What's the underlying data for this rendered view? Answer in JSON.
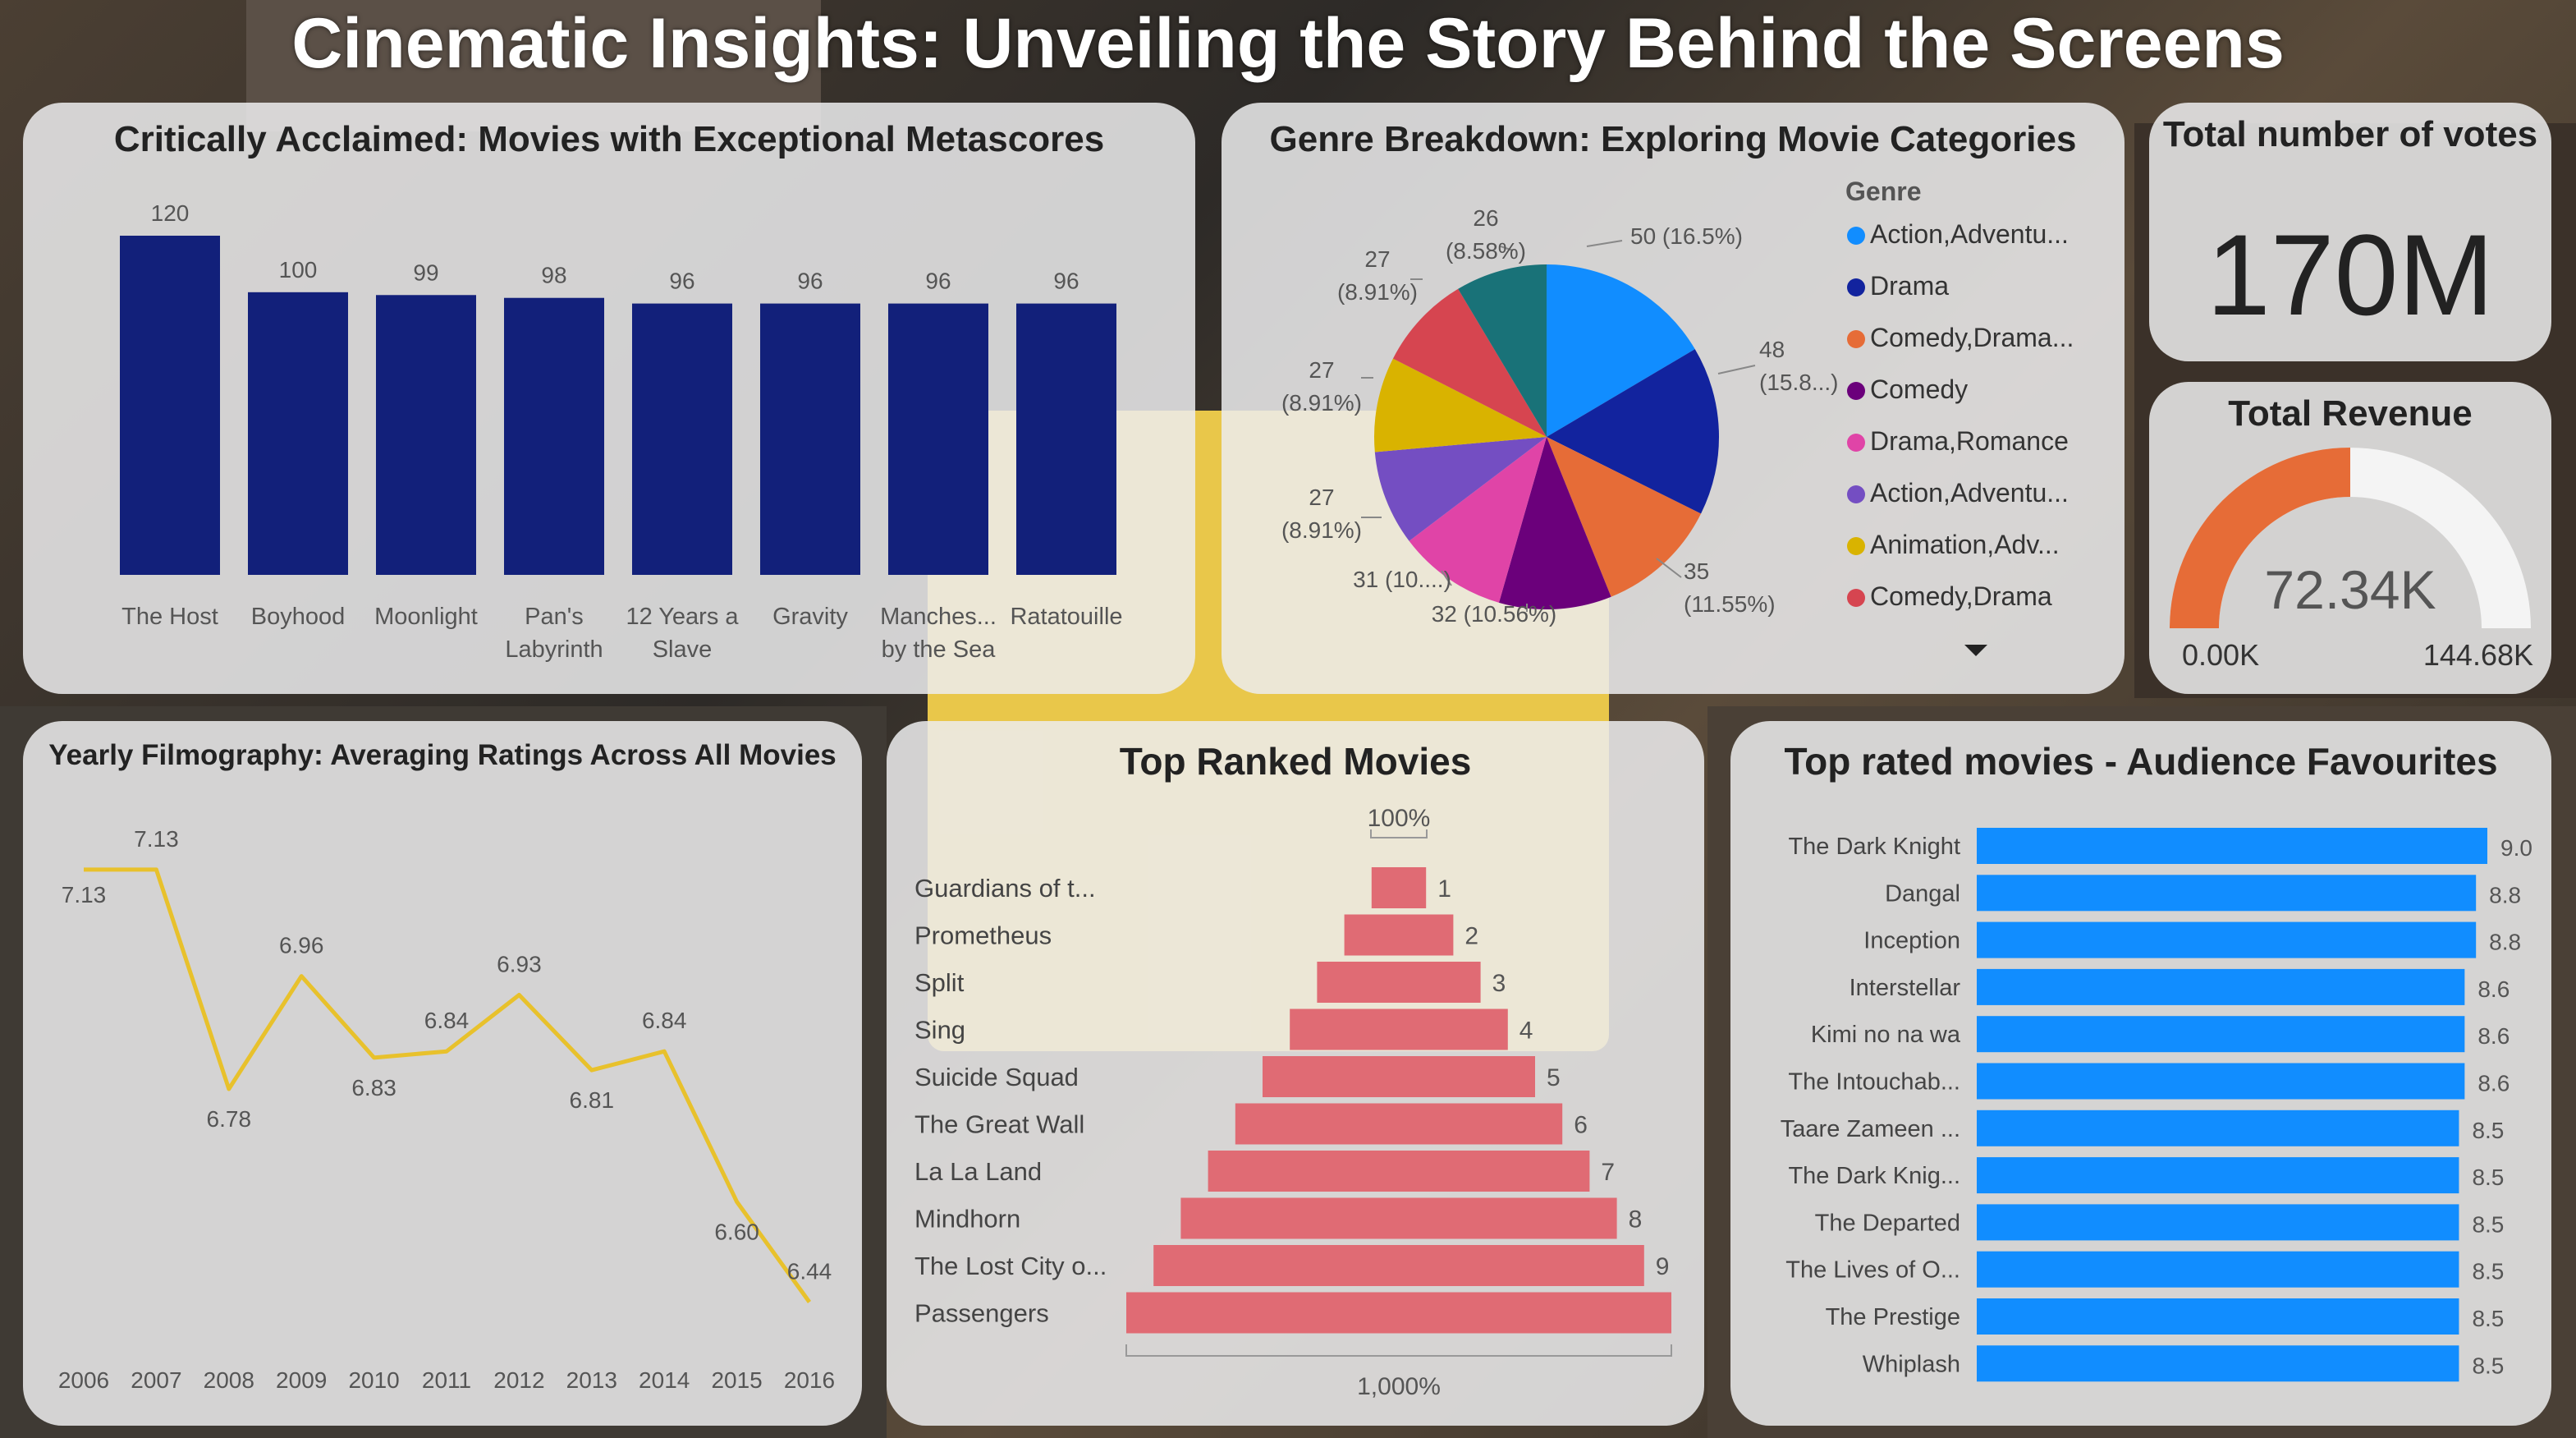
{
  "title": "Cinematic Insights: Unveiling the Story Behind the Screens",
  "metascore": {
    "title": "Critically Acclaimed: Movies with Exceptional Metascores",
    "chart_data": {
      "type": "bar",
      "categories": [
        "The Host",
        "Boyhood",
        "Moonlight",
        "Pan's Labyrinth",
        "12 Years a Slave",
        "Gravity",
        "Manches... by the Sea",
        "Ratatouille"
      ],
      "category_lines": [
        [
          "The Host"
        ],
        [
          "Boyhood"
        ],
        [
          "Moonlight"
        ],
        [
          "Pan's",
          "Labyrinth"
        ],
        [
          "12 Years a",
          "Slave"
        ],
        [
          "Gravity"
        ],
        [
          "Manches...",
          "by the Sea"
        ],
        [
          "Ratatouille"
        ]
      ],
      "values": [
        120,
        100,
        99,
        98,
        96,
        96,
        96,
        96
      ],
      "color": "#12207a",
      "ylim": [
        0,
        120
      ]
    }
  },
  "genre": {
    "title": "Genre Breakdown: Exploring Movie Categories",
    "legend_title": "Genre",
    "chart_data": {
      "type": "pie",
      "slices": [
        {
          "name": "Action,Adventu...",
          "value": 50,
          "label": [
            "50 (16.5%)"
          ],
          "color": "#118dff"
        },
        {
          "name": "Drama",
          "value": 48,
          "label": [
            "48",
            "(15.8...)"
          ],
          "color": "#12239e"
        },
        {
          "name": "Comedy,Drama...",
          "value": 35,
          "label": [
            "35",
            "(11.55%)"
          ],
          "color": "#e66c37"
        },
        {
          "name": "Comedy",
          "value": 32,
          "label": [
            "32 (10.56%)"
          ],
          "color": "#6b007b"
        },
        {
          "name": "Drama,Romance",
          "value": 31,
          "label": [
            "31 (10....)"
          ],
          "color": "#e044a7"
        },
        {
          "name": "Action,Adventu...",
          "value": 27,
          "label": [
            "27",
            "(8.91%)"
          ],
          "color": "#744ec2"
        },
        {
          "name": "Animation,Adv...",
          "value": 27,
          "label": [
            "27",
            "(8.91%)"
          ],
          "color": "#d9b300"
        },
        {
          "name": "Comedy,Drama",
          "value": 27,
          "label": [
            "27",
            "(8.91%)"
          ],
          "color": "#d64550"
        },
        {
          "name": "",
          "value": 26,
          "label": [
            "26",
            "(8.58%)"
          ],
          "color": "#197278"
        }
      ]
    },
    "legend_more_icon": "caret-down-icon"
  },
  "votes": {
    "title": "Total number of votes",
    "value": "170M"
  },
  "revenue": {
    "title": "Total Revenue",
    "value": "72.34K",
    "min": "0.00K",
    "max": "144.68K",
    "fraction": 0.5,
    "fill_color": "#e66c37",
    "track_color": "#f4f4f4"
  },
  "yearly": {
    "title": "Yearly Filmography: Averaging Ratings Across All Movies",
    "chart_data": {
      "type": "line",
      "x": [
        "2006",
        "2007",
        "2008",
        "2009",
        "2010",
        "2011",
        "2012",
        "2013",
        "2014",
        "2015",
        "2016"
      ],
      "values": [
        7.13,
        7.13,
        6.78,
        6.96,
        6.83,
        6.84,
        6.93,
        6.81,
        6.84,
        6.6,
        6.44
      ],
      "labels": [
        "7.13",
        "7.13",
        "6.78",
        "6.96",
        "6.83",
        "6.84",
        "6.93",
        "6.81",
        "6.84",
        "6.60",
        "6.44"
      ],
      "color": "#e8c12c"
    }
  },
  "funnel": {
    "title": "Top Ranked Movies",
    "top_label": "100%",
    "bottom_label": "1,000%",
    "chart_data": {
      "type": "bar",
      "categories": [
        "Guardians of t...",
        "Prometheus",
        "Split",
        "Sing",
        "Suicide Squad",
        "The Great Wall",
        "La La Land",
        "Mindhorn",
        "The Lost City o...",
        "Passengers"
      ],
      "values": [
        1,
        2,
        3,
        4,
        5,
        6,
        7,
        8,
        9,
        10
      ],
      "value_labels": [
        "1",
        "2",
        "3",
        "4",
        "5",
        "6",
        "7",
        "8",
        "9",
        ""
      ],
      "color": "#e06b74"
    }
  },
  "toprated": {
    "title": "Top rated movies - Audience Favourites",
    "chart_data": {
      "type": "bar",
      "categories": [
        "The Dark Knight",
        "Dangal",
        "Inception",
        "Interstellar",
        "Kimi no na wa",
        "The Intouchab...",
        "Taare Zameen ...",
        "The Dark Knig...",
        "The Departed",
        "The Lives of O...",
        "The Prestige",
        "Whiplash"
      ],
      "values": [
        9.0,
        8.8,
        8.8,
        8.6,
        8.6,
        8.6,
        8.5,
        8.5,
        8.5,
        8.5,
        8.5,
        8.5
      ],
      "labels": [
        "9.0",
        "8.8",
        "8.8",
        "8.6",
        "8.6",
        "8.6",
        "8.5",
        "8.5",
        "8.5",
        "8.5",
        "8.5",
        "8.5"
      ],
      "color": "#118dff"
    }
  }
}
